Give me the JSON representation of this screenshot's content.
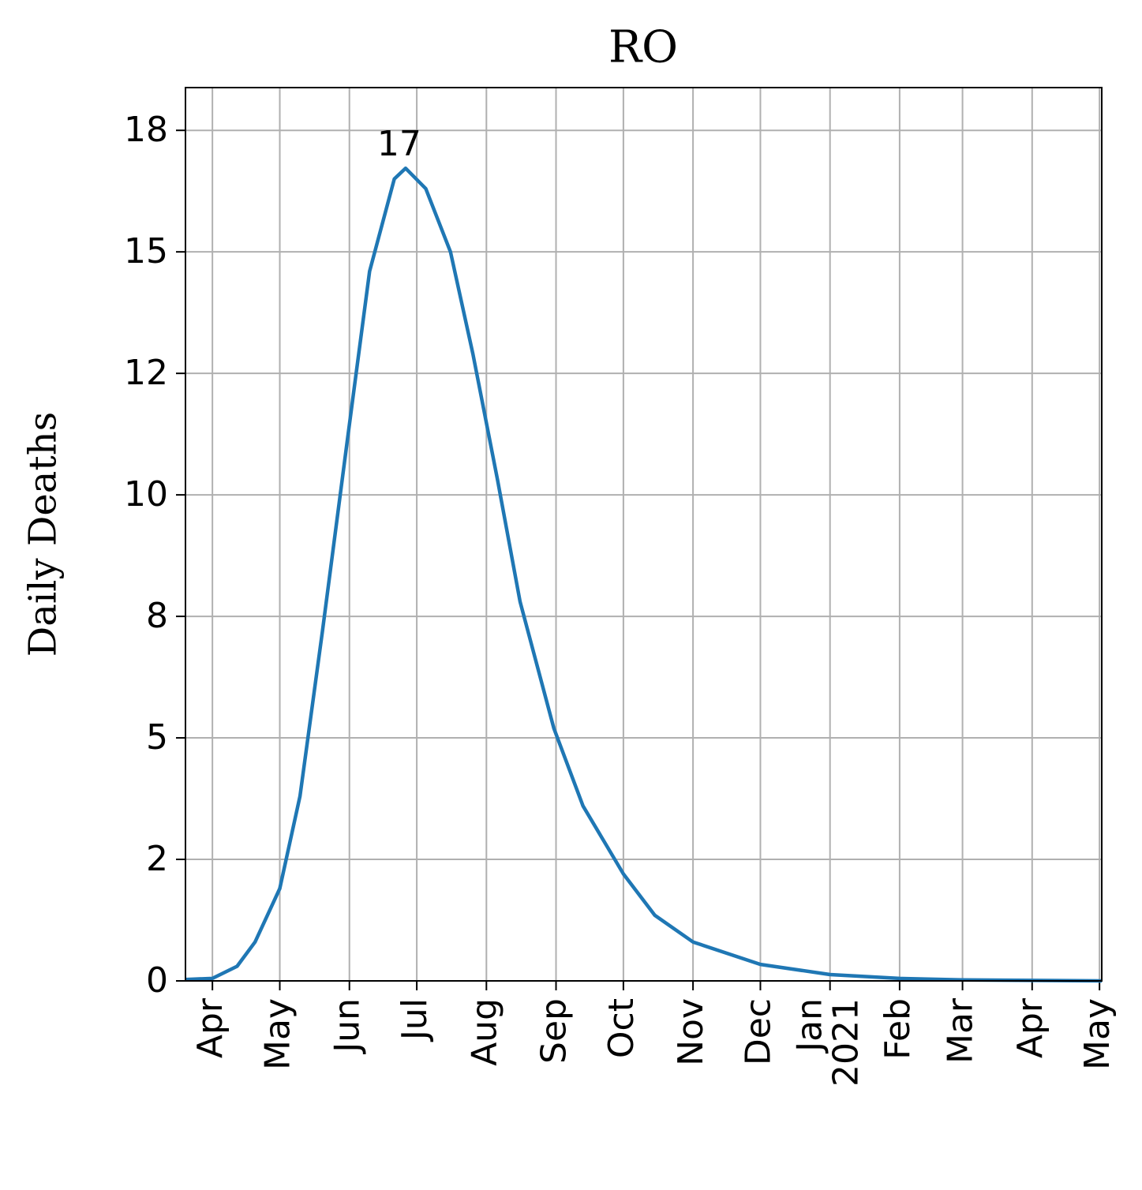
{
  "chart_data": {
    "type": "line",
    "title": "RO",
    "ylabel": "Daily Deaths",
    "color": "#1f77b4",
    "grid": true,
    "x": [
      "2020-03-20",
      "2020-04-01",
      "2020-04-12",
      "2020-04-20",
      "2020-05-01",
      "2020-05-10",
      "2020-05-20",
      "2020-05-31",
      "2020-06-10",
      "2020-06-21",
      "2020-06-26",
      "2020-07-05",
      "2020-07-16",
      "2020-07-26",
      "2020-08-06",
      "2020-08-16",
      "2020-08-31",
      "2020-09-13",
      "2020-10-01",
      "2020-10-15",
      "2020-11-01",
      "2020-12-01",
      "2021-01-01",
      "2021-02-01",
      "2021-03-01",
      "2021-04-01",
      "2021-05-02"
    ],
    "values": [
      0.03,
      0.05,
      0.3,
      0.8,
      1.9,
      3.8,
      7.2,
      11.1,
      14.6,
      16.5,
      16.72,
      16.3,
      15.0,
      12.9,
      10.3,
      7.8,
      5.2,
      3.6,
      2.2,
      1.35,
      0.8,
      0.34,
      0.13,
      0.05,
      0.02,
      0.01,
      0.0
    ],
    "peak": {
      "x": "2020-06-26",
      "value": 16.72,
      "label": "17"
    },
    "xlim": [
      "2020-03-20",
      "2021-05-02"
    ],
    "xticks": [
      {
        "value": "2020-04-01",
        "label": "Apr"
      },
      {
        "value": "2020-05-01",
        "label": "May"
      },
      {
        "value": "2020-06-01",
        "label": "Jun"
      },
      {
        "value": "2020-07-01",
        "label": "Jul"
      },
      {
        "value": "2020-08-01",
        "label": "Aug"
      },
      {
        "value": "2020-09-01",
        "label": "Sep"
      },
      {
        "value": "2020-10-01",
        "label": "Oct"
      },
      {
        "value": "2020-11-01",
        "label": "Nov"
      },
      {
        "value": "2020-12-01",
        "label": "Dec"
      },
      {
        "value": "2021-01-01",
        "label": "Jan\n2021"
      },
      {
        "value": "2021-02-01",
        "label": "Feb"
      },
      {
        "value": "2021-03-01",
        "label": "Mar"
      },
      {
        "value": "2021-04-01",
        "label": "Apr"
      },
      {
        "value": "2021-05-01",
        "label": "May"
      }
    ],
    "ylim": [
      0,
      18.38
    ],
    "yticks": [
      0,
      {
        "value": 2.5,
        "label": "2"
      },
      5,
      {
        "value": 7.5,
        "label": "8"
      },
      10,
      {
        "value": 12.5,
        "label": "12"
      },
      15,
      {
        "value": 17.5,
        "label": "18"
      }
    ]
  }
}
